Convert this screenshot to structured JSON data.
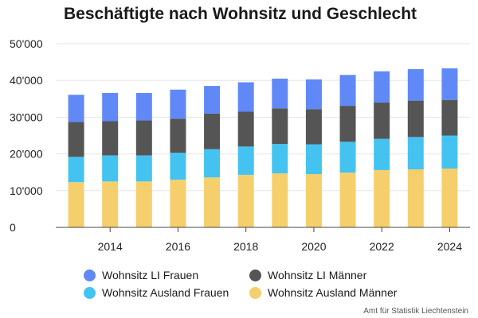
{
  "chart_data": {
    "type": "bar",
    "stacked": true,
    "title": "Beschäftigte nach Wohnsitz und Geschlecht",
    "x": [
      2013,
      2014,
      2015,
      2016,
      2017,
      2018,
      2019,
      2020,
      2021,
      2022,
      2023,
      2024
    ],
    "x_tick_labels": [
      "2014",
      "2016",
      "2018",
      "2020",
      "2022",
      "2024"
    ],
    "y_tick_labels": [
      "0",
      "10'000",
      "20'000",
      "30'000",
      "40'000",
      "50'000"
    ],
    "ylim": [
      0,
      50000
    ],
    "grid": true,
    "legend_position": "bottom",
    "series": [
      {
        "name": "Wohnsitz Ausland Männer",
        "color": "#f5cf6b",
        "values": [
          12300,
          12500,
          12500,
          13000,
          13600,
          14300,
          14700,
          14500,
          14900,
          15600,
          15800,
          16000
        ]
      },
      {
        "name": "Wohnsitz Ausland Frauen",
        "color": "#45c3f0",
        "values": [
          6900,
          7100,
          7100,
          7300,
          7700,
          7700,
          8000,
          8100,
          8400,
          8500,
          8800,
          9000
        ]
      },
      {
        "name": "Wohnsitz LI Männer",
        "color": "#555555",
        "values": [
          9500,
          9300,
          9500,
          9300,
          9700,
          9500,
          9700,
          9600,
          9800,
          9900,
          9900,
          9700
        ]
      },
      {
        "name": "Wohnsitz LI Frauen",
        "color": "#6089f7",
        "values": [
          7400,
          7700,
          7500,
          7900,
          7500,
          8000,
          8100,
          8100,
          8400,
          8500,
          8600,
          8600
        ]
      }
    ],
    "legend_order": [
      "Wohnsitz LI Frauen",
      "Wohnsitz LI Männer",
      "Wohnsitz Ausland Frauen",
      "Wohnsitz Ausland Männer"
    ]
  },
  "source": "Amt für Statistik Liechtenstein"
}
